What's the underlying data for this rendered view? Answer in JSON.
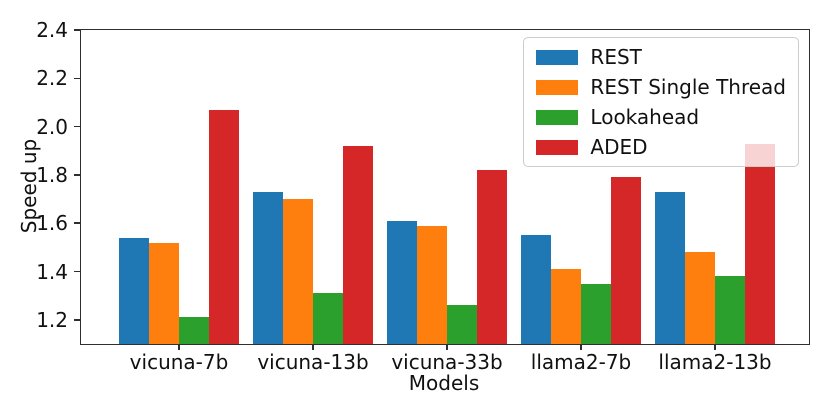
{
  "figure": {
    "background": "#ffffff"
  },
  "chart_data": {
    "type": "bar",
    "title": "",
    "xlabel": "Models",
    "ylabel": "Speed up",
    "categories": [
      "vicuna-7b",
      "vicuna-13b",
      "vicuna-33b",
      "llama2-7b",
      "llama2-13b"
    ],
    "series": [
      {
        "name": "REST",
        "color": "#1f77b4",
        "values": [
          1.54,
          1.73,
          1.61,
          1.55,
          1.73
        ]
      },
      {
        "name": "REST Single Thread",
        "color": "#ff7f0e",
        "values": [
          1.52,
          1.7,
          1.59,
          1.41,
          1.48
        ]
      },
      {
        "name": "Lookahead",
        "color": "#2ca02c",
        "values": [
          1.21,
          1.31,
          1.26,
          1.35,
          1.38
        ]
      },
      {
        "name": "ADED",
        "color": "#d62728",
        "values": [
          2.07,
          1.92,
          1.82,
          1.79,
          1.93
        ]
      }
    ],
    "ylim": [
      1.1,
      2.4
    ],
    "yticks": [
      1.2,
      1.4,
      1.6,
      1.8,
      2.0,
      2.2,
      2.4
    ],
    "grid": false,
    "legend_position": "upper right",
    "legend_background": "rgba(255,255,255,0.8)",
    "legend_border_color": "#cccccc",
    "spine_color": "#2f2f2f",
    "text_color": "#111111"
  }
}
